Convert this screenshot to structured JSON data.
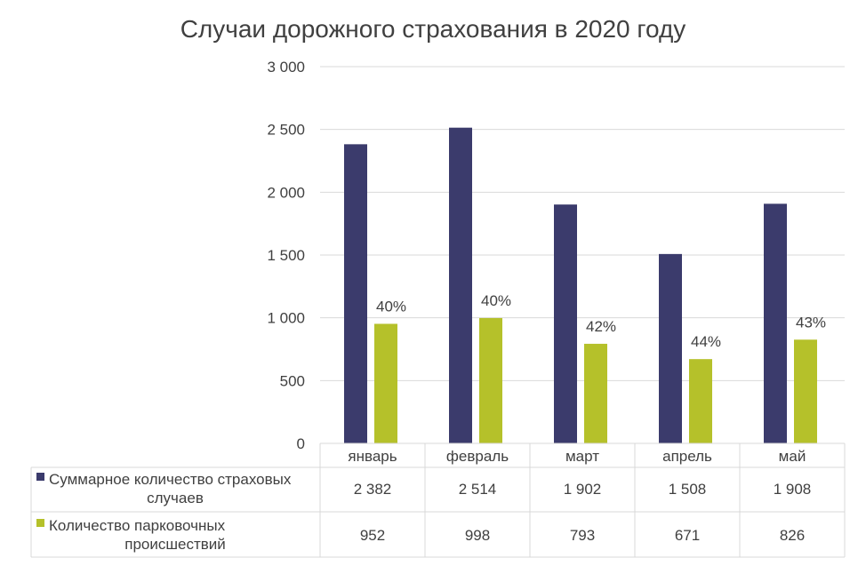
{
  "chart_data": {
    "type": "bar",
    "title": "Случаи дорожного страхования в 2020 году",
    "categories": [
      "январь",
      "февраль",
      "март",
      "апрель",
      "май"
    ],
    "ylim": [
      0,
      3000
    ],
    "y_ticks": [
      "0",
      "500",
      "1 000",
      "1 500",
      "2 000",
      "2 500",
      "3 000"
    ],
    "grid": true,
    "legend": "data-table",
    "series": [
      {
        "name": "Суммарное количество страховых случаев",
        "legend_lines": [
          "Суммарное количество страховых",
          "случаев"
        ],
        "color": "#3b3b6c",
        "values": [
          2382,
          2514,
          1902,
          1508,
          1908
        ],
        "value_labels": [
          "2 382",
          "2 514",
          "1 902",
          "1 508",
          "1 908"
        ]
      },
      {
        "name": "Количество парковочных происшествий",
        "legend_lines": [
          "Количество парковочных",
          "происшествий"
        ],
        "color": "#b5c12a",
        "values": [
          952,
          998,
          793,
          671,
          826
        ],
        "value_labels": [
          "952",
          "998",
          "793",
          "671",
          "826"
        ],
        "data_labels": [
          "40%",
          "40%",
          "42%",
          "44%",
          "43%"
        ]
      }
    ]
  }
}
